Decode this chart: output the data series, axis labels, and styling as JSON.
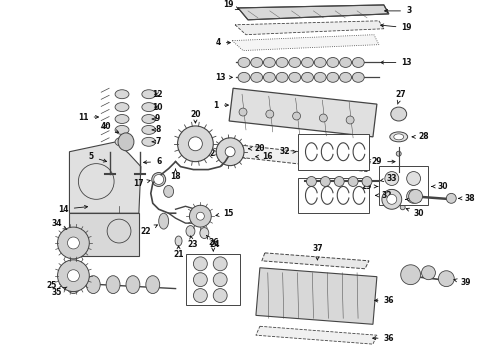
{
  "bg_color": "#ffffff",
  "lc": "#444444",
  "fc_light": "#e8e8e8",
  "fc_mid": "#cccccc",
  "fc_dark": "#aaaaaa",
  "lbl": "#111111",
  "fig_width": 4.9,
  "fig_height": 3.6,
  "dpi": 100
}
